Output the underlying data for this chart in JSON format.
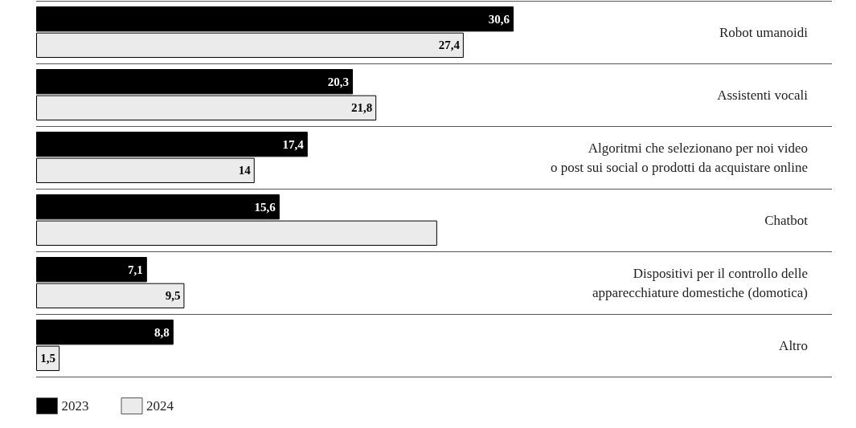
{
  "chart_data": {
    "type": "bar",
    "orientation": "horizontal",
    "categories": [
      "Robot umanoidi",
      "Assistenti vocali",
      "Algoritmi che selezionano per noi video\no post sui social o prodotti da acquistare online",
      "Chatbot",
      "Dispositivi per il controllo delle\napparecchiature domestiche (domotica)",
      "Altro"
    ],
    "series": [
      {
        "name": "2023",
        "color": "#000000",
        "values": [
          30.6,
          20.3,
          17.4,
          15.6,
          7.1,
          8.8
        ],
        "value_labels": [
          "30,6",
          "20,3",
          "17,4",
          "15,6",
          "7,1",
          "8,8"
        ]
      },
      {
        "name": "2024",
        "color": "#ebebeb",
        "values": [
          27.4,
          21.8,
          14,
          25.7,
          9.5,
          1.5
        ],
        "value_labels": [
          "27,4",
          "21,8",
          "14",
          null,
          "9,5",
          "1,5"
        ]
      }
    ],
    "grid": "y",
    "legend": "bottom left"
  }
}
